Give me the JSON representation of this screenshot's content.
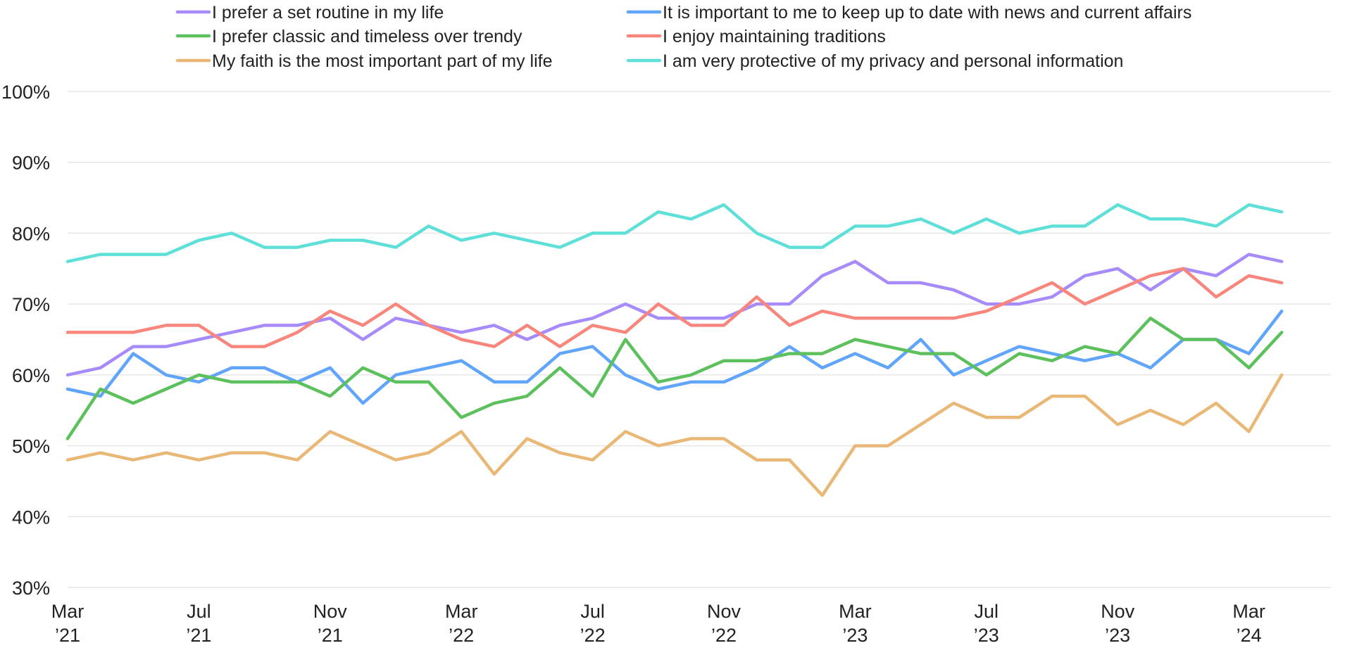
{
  "chart_data": {
    "type": "line",
    "title": "",
    "xlabel": "",
    "ylabel": "",
    "ylim": [
      30,
      100
    ],
    "y_unit": "%",
    "y_ticks": [
      30,
      40,
      50,
      60,
      70,
      80,
      90,
      100
    ],
    "y_tick_labels": [
      "30%",
      "40%",
      "50%",
      "60%",
      "70%",
      "80%",
      "90%",
      "100%"
    ],
    "grid": true,
    "legend_position": "top",
    "x": [
      "2021-03",
      "2021-04",
      "2021-05",
      "2021-06",
      "2021-07",
      "2021-08",
      "2021-09",
      "2021-10",
      "2021-11",
      "2021-12",
      "2022-01",
      "2022-02",
      "2022-03",
      "2022-04",
      "2022-05",
      "2022-06",
      "2022-07",
      "2022-08",
      "2022-09",
      "2022-10",
      "2022-11",
      "2022-12",
      "2023-01",
      "2023-02",
      "2023-03",
      "2023-04",
      "2023-05",
      "2023-06",
      "2023-07",
      "2023-08",
      "2023-09",
      "2023-10",
      "2023-11",
      "2023-12",
      "2024-01",
      "2024-02",
      "2024-03",
      "2024-04"
    ],
    "x_ticks": [
      {
        "x": "2021-03",
        "label": [
          "Mar",
          "’21"
        ]
      },
      {
        "x": "2021-07",
        "label": [
          "Jul",
          "’21"
        ]
      },
      {
        "x": "2021-11",
        "label": [
          "Nov",
          "’21"
        ]
      },
      {
        "x": "2022-03",
        "label": [
          "Mar",
          "’22"
        ]
      },
      {
        "x": "2022-07",
        "label": [
          "Jul",
          "’22"
        ]
      },
      {
        "x": "2022-11",
        "label": [
          "Nov",
          "’22"
        ]
      },
      {
        "x": "2023-03",
        "label": [
          "Mar",
          "’23"
        ]
      },
      {
        "x": "2023-07",
        "label": [
          "Jul",
          "’23"
        ]
      },
      {
        "x": "2023-11",
        "label": [
          "Nov",
          "’23"
        ]
      },
      {
        "x": "2024-03",
        "label": [
          "Mar",
          "’24"
        ]
      }
    ],
    "series": [
      {
        "name": "I prefer a set routine in my life",
        "color": "#a78bfa",
        "values": [
          60,
          61,
          64,
          64,
          65,
          66,
          67,
          67,
          68,
          65,
          68,
          67,
          66,
          67,
          65,
          67,
          68,
          70,
          68,
          68,
          68,
          70,
          70,
          74,
          76,
          73,
          73,
          72,
          70,
          70,
          71,
          74,
          75,
          72,
          75,
          74,
          77,
          76
        ]
      },
      {
        "name": "It is important to me to keep up to date with news and current affairs",
        "color": "#60a5fa",
        "values": [
          58,
          57,
          63,
          60,
          59,
          61,
          61,
          59,
          61,
          56,
          60,
          61,
          62,
          59,
          59,
          63,
          64,
          60,
          58,
          59,
          59,
          61,
          64,
          61,
          63,
          61,
          65,
          60,
          62,
          64,
          63,
          62,
          63,
          61,
          65,
          65,
          63,
          69
        ]
      },
      {
        "name": "I prefer classic and timeless over trendy",
        "color": "#5cc05c",
        "values": [
          51,
          58,
          56,
          58,
          60,
          59,
          59,
          59,
          57,
          61,
          59,
          59,
          54,
          56,
          57,
          61,
          57,
          65,
          59,
          60,
          62,
          62,
          63,
          63,
          65,
          64,
          63,
          63,
          60,
          63,
          62,
          64,
          63,
          68,
          65,
          65,
          61,
          66
        ]
      },
      {
        "name": "I enjoy maintaining traditions",
        "color": "#f9867d",
        "values": [
          66,
          66,
          66,
          67,
          67,
          64,
          64,
          66,
          69,
          67,
          70,
          67,
          65,
          64,
          67,
          64,
          67,
          66,
          70,
          67,
          67,
          71,
          67,
          69,
          68,
          68,
          68,
          68,
          69,
          71,
          73,
          70,
          72,
          74,
          75,
          71,
          74,
          73
        ]
      },
      {
        "name": "My faith is the most important part of my life",
        "color": "#e9b877",
        "values": [
          48,
          49,
          48,
          49,
          48,
          49,
          49,
          48,
          52,
          50,
          48,
          49,
          52,
          46,
          51,
          49,
          48,
          52,
          50,
          51,
          51,
          48,
          48,
          43,
          50,
          50,
          53,
          56,
          54,
          54,
          57,
          57,
          53,
          55,
          53,
          56,
          52,
          60
        ]
      },
      {
        "name": "I am very protective of my privacy and personal information",
        "color": "#5ee0d8",
        "values": [
          76,
          77,
          77,
          77,
          79,
          80,
          78,
          78,
          79,
          79,
          78,
          81,
          79,
          80,
          79,
          78,
          80,
          80,
          83,
          82,
          84,
          80,
          78,
          78,
          81,
          81,
          82,
          80,
          82,
          80,
          81,
          81,
          84,
          82,
          82,
          81,
          84,
          83
        ]
      }
    ]
  }
}
